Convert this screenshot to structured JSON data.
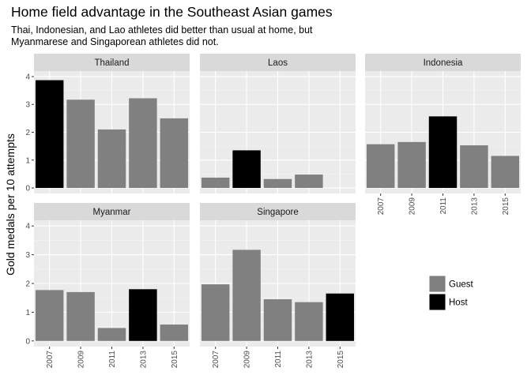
{
  "title": "Home field advantage in the Southeast Asian games",
  "subtitle_lines": [
    "Thai, Indonesian, and Lao athletes did better than usual at home, but",
    "Myanmarese and Singaporean athletes did not."
  ],
  "chart_data": {
    "type": "bar",
    "ylabel": "Gold medals per 10 attempts",
    "xlabel": "",
    "ylim": [
      0,
      4
    ],
    "y_ticks": [
      0,
      1,
      2,
      3,
      4
    ],
    "categories": [
      "2007",
      "2009",
      "2011",
      "2013",
      "2015"
    ],
    "legend": [
      {
        "name": "Guest",
        "color": "#808080"
      },
      {
        "name": "Host",
        "color": "#000000"
      }
    ],
    "legend_placement": "bottom-right",
    "grid": true,
    "panels": [
      {
        "name": "Thailand",
        "values": [
          3.87,
          3.17,
          2.1,
          3.22,
          2.5
        ],
        "host": [
          1,
          0,
          0,
          0,
          0
        ]
      },
      {
        "name": "Laos",
        "values": [
          0.37,
          1.35,
          0.32,
          0.48,
          null
        ],
        "host": [
          0,
          1,
          0,
          0,
          0
        ]
      },
      {
        "name": "Indonesia",
        "values": [
          1.57,
          1.65,
          2.57,
          1.53,
          1.15
        ],
        "host": [
          0,
          0,
          1,
          0,
          0
        ]
      },
      {
        "name": "Myanmar",
        "values": [
          1.77,
          1.7,
          0.45,
          1.8,
          0.57
        ],
        "host": [
          0,
          0,
          0,
          1,
          0
        ]
      },
      {
        "name": "Singapore",
        "values": [
          1.97,
          3.17,
          1.45,
          1.35,
          1.65
        ],
        "host": [
          0,
          0,
          0,
          0,
          1
        ]
      }
    ]
  }
}
